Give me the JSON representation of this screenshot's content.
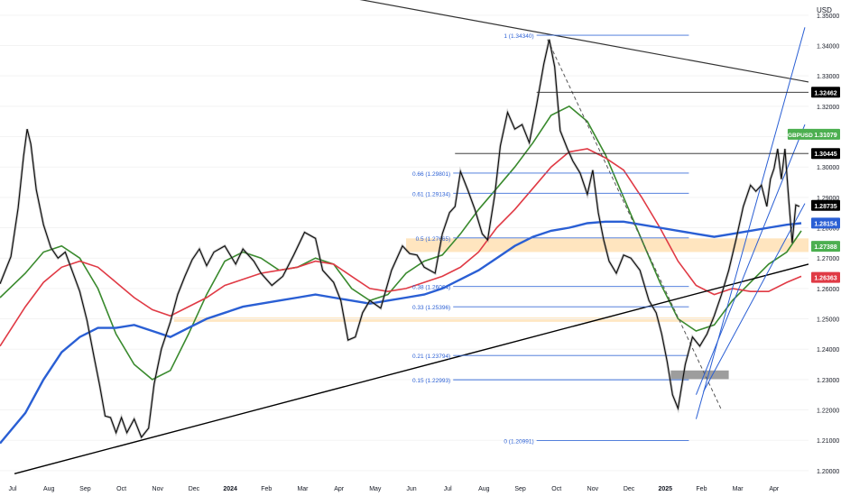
{
  "chart_data": {
    "type": "line",
    "symbol": "GBPUSD",
    "currency": "USD",
    "y_ticks": [
      "1.35000",
      "1.34000",
      "1.33000",
      "1.32000",
      "1.31000",
      "1.30000",
      "1.29000",
      "1.28000",
      "1.27000",
      "1.26000",
      "1.25000",
      "1.24000",
      "1.23000",
      "1.22000",
      "1.21000",
      "1.20000"
    ],
    "ylim": [
      1.197,
      1.355
    ],
    "x_ticks": [
      {
        "label": "Jul",
        "m": 0.0
      },
      {
        "label": "Aug",
        "m": 1.0
      },
      {
        "label": "Sep",
        "m": 2.0
      },
      {
        "label": "Oct",
        "m": 3.0
      },
      {
        "label": "Nov",
        "m": 4.0
      },
      {
        "label": "Dec",
        "m": 5.0
      },
      {
        "label": "2024",
        "m": 6.0
      },
      {
        "label": "Feb",
        "m": 7.0
      },
      {
        "label": "Mar",
        "m": 8.0
      },
      {
        "label": "Apr",
        "m": 9.0
      },
      {
        "label": "May",
        "m": 10.0
      },
      {
        "label": "Jun",
        "m": 11.0
      },
      {
        "label": "Jul",
        "m": 12.0
      },
      {
        "label": "Aug",
        "m": 13.0
      },
      {
        "label": "Sep",
        "m": 14.0
      },
      {
        "label": "Oct",
        "m": 15.0
      },
      {
        "label": "Nov",
        "m": 16.0
      },
      {
        "label": "Dec",
        "m": 17.0
      },
      {
        "label": "2025",
        "m": 18.0
      },
      {
        "label": "Feb",
        "m": 19.0
      },
      {
        "label": "Mar",
        "m": 20.0
      },
      {
        "label": "Apr",
        "m": 21.0
      }
    ],
    "xlim": [
      -0.2,
      22.1
    ],
    "price": [
      [
        -0.2,
        1.2615
      ],
      [
        0.1,
        1.2705
      ],
      [
        0.3,
        1.2865
      ],
      [
        0.45,
        1.3035
      ],
      [
        0.55,
        1.3125
      ],
      [
        0.65,
        1.3075
      ],
      [
        0.8,
        1.2925
      ],
      [
        1.0,
        1.281
      ],
      [
        1.2,
        1.2735
      ],
      [
        1.4,
        1.27
      ],
      [
        1.6,
        1.272
      ],
      [
        1.8,
        1.2655
      ],
      [
        2.0,
        1.259
      ],
      [
        2.2,
        1.2495
      ],
      [
        2.4,
        1.237
      ],
      [
        2.55,
        1.228
      ],
      [
        2.7,
        1.218
      ],
      [
        2.85,
        1.2175
      ],
      [
        3.0,
        1.2125
      ],
      [
        3.15,
        1.2175
      ],
      [
        3.3,
        1.2125
      ],
      [
        3.5,
        1.217
      ],
      [
        3.7,
        1.211
      ],
      [
        3.9,
        1.214
      ],
      [
        4.05,
        1.2285
      ],
      [
        4.25,
        1.24
      ],
      [
        4.5,
        1.249
      ],
      [
        4.7,
        1.258
      ],
      [
        4.9,
        1.264
      ],
      [
        5.1,
        1.2695
      ],
      [
        5.3,
        1.273
      ],
      [
        5.5,
        1.2675
      ],
      [
        5.7,
        1.272
      ],
      [
        6.0,
        1.274
      ],
      [
        6.3,
        1.268
      ],
      [
        6.5,
        1.273
      ],
      [
        6.8,
        1.269
      ],
      [
        7.0,
        1.265
      ],
      [
        7.3,
        1.261
      ],
      [
        7.6,
        1.264
      ],
      [
        7.9,
        1.271
      ],
      [
        8.2,
        1.2785
      ],
      [
        8.5,
        1.2765
      ],
      [
        8.7,
        1.266
      ],
      [
        9.0,
        1.262
      ],
      [
        9.2,
        1.256
      ],
      [
        9.4,
        1.243
      ],
      [
        9.6,
        1.244
      ],
      [
        9.8,
        1.252
      ],
      [
        10.0,
        1.256
      ],
      [
        10.3,
        1.2535
      ],
      [
        10.6,
        1.266
      ],
      [
        10.9,
        1.274
      ],
      [
        11.1,
        1.2715
      ],
      [
        11.3,
        1.271
      ],
      [
        11.5,
        1.267
      ],
      [
        11.8,
        1.265
      ],
      [
        12.0,
        1.278
      ],
      [
        12.2,
        1.285
      ],
      [
        12.35,
        1.287
      ],
      [
        12.5,
        1.2985
      ],
      [
        12.7,
        1.2925
      ],
      [
        12.9,
        1.286
      ],
      [
        13.1,
        1.278
      ],
      [
        13.25,
        1.276
      ],
      [
        13.45,
        1.291
      ],
      [
        13.6,
        1.307
      ],
      [
        13.8,
        1.318
      ],
      [
        14.0,
        1.3125
      ],
      [
        14.2,
        1.314
      ],
      [
        14.4,
        1.308
      ],
      [
        14.6,
        1.3205
      ],
      [
        14.8,
        1.334
      ],
      [
        14.95,
        1.342
      ],
      [
        15.1,
        1.333
      ],
      [
        15.25,
        1.312
      ],
      [
        15.45,
        1.306
      ],
      [
        15.6,
        1.302
      ],
      [
        15.8,
        1.298
      ],
      [
        16.0,
        1.291
      ],
      [
        16.15,
        1.299
      ],
      [
        16.3,
        1.285
      ],
      [
        16.45,
        1.276
      ],
      [
        16.6,
        1.269
      ],
      [
        16.8,
        1.265
      ],
      [
        17.0,
        1.271
      ],
      [
        17.2,
        1.27
      ],
      [
        17.45,
        1.266
      ],
      [
        17.7,
        1.256
      ],
      [
        17.9,
        1.252
      ],
      [
        18.05,
        1.245
      ],
      [
        18.2,
        1.236
      ],
      [
        18.35,
        1.225
      ],
      [
        18.5,
        1.2205
      ],
      [
        18.7,
        1.235
      ],
      [
        18.9,
        1.244
      ],
      [
        19.1,
        1.241
      ],
      [
        19.3,
        1.245
      ],
      [
        19.5,
        1.251
      ],
      [
        19.7,
        1.258
      ],
      [
        19.9,
        1.266
      ],
      [
        20.1,
        1.276
      ],
      [
        20.3,
        1.287
      ],
      [
        20.5,
        1.294
      ],
      [
        20.65,
        1.292
      ],
      [
        20.8,
        1.294
      ],
      [
        20.95,
        1.287
      ],
      [
        21.05,
        1.296
      ],
      [
        21.15,
        1.2995
      ],
      [
        21.25,
        1.306
      ],
      [
        21.35,
        1.296
      ],
      [
        21.45,
        1.306
      ],
      [
        21.55,
        1.29
      ],
      [
        21.65,
        1.275
      ],
      [
        21.75,
        1.2875
      ],
      [
        21.85,
        1.287
      ]
    ],
    "moving_averages": [
      {
        "color": "#3a8a2e",
        "points": [
          [
            -0.2,
            1.257
          ],
          [
            0.5,
            1.265
          ],
          [
            1.0,
            1.272
          ],
          [
            1.5,
            1.274
          ],
          [
            2.0,
            1.27
          ],
          [
            2.5,
            1.26
          ],
          [
            3.0,
            1.245
          ],
          [
            3.5,
            1.235
          ],
          [
            4.0,
            1.23
          ],
          [
            4.5,
            1.233
          ],
          [
            5.0,
            1.245
          ],
          [
            5.5,
            1.258
          ],
          [
            6.0,
            1.269
          ],
          [
            6.5,
            1.272
          ],
          [
            7.0,
            1.27
          ],
          [
            7.5,
            1.266
          ],
          [
            8.0,
            1.267
          ],
          [
            8.5,
            1.27
          ],
          [
            9.0,
            1.268
          ],
          [
            9.5,
            1.26
          ],
          [
            10.0,
            1.256
          ],
          [
            10.5,
            1.258
          ],
          [
            11.0,
            1.265
          ],
          [
            11.5,
            1.269
          ],
          [
            12.0,
            1.271
          ],
          [
            12.5,
            1.278
          ],
          [
            13.0,
            1.286
          ],
          [
            13.5,
            1.293
          ],
          [
            14.0,
            1.3
          ],
          [
            14.5,
            1.308
          ],
          [
            15.0,
            1.317
          ],
          [
            15.5,
            1.32
          ],
          [
            16.0,
            1.315
          ],
          [
            16.5,
            1.304
          ],
          [
            17.0,
            1.29
          ],
          [
            17.5,
            1.276
          ],
          [
            18.0,
            1.262
          ],
          [
            18.5,
            1.25
          ],
          [
            19.0,
            1.246
          ],
          [
            19.5,
            1.248
          ],
          [
            20.0,
            1.256
          ],
          [
            20.5,
            1.262
          ],
          [
            21.0,
            1.268
          ],
          [
            21.5,
            1.272
          ],
          [
            21.9,
            1.279
          ]
        ]
      },
      {
        "color": "#e03a45",
        "points": [
          [
            -0.2,
            1.241
          ],
          [
            0.5,
            1.254
          ],
          [
            1.0,
            1.262
          ],
          [
            1.5,
            1.267
          ],
          [
            2.0,
            1.269
          ],
          [
            2.5,
            1.267
          ],
          [
            3.0,
            1.262
          ],
          [
            3.5,
            1.257
          ],
          [
            4.0,
            1.253
          ],
          [
            4.5,
            1.251
          ],
          [
            5.0,
            1.254
          ],
          [
            5.5,
            1.257
          ],
          [
            6.0,
            1.261
          ],
          [
            6.5,
            1.263
          ],
          [
            7.0,
            1.265
          ],
          [
            7.5,
            1.266
          ],
          [
            8.0,
            1.267
          ],
          [
            8.5,
            1.269
          ],
          [
            9.0,
            1.268
          ],
          [
            9.5,
            1.264
          ],
          [
            10.0,
            1.26
          ],
          [
            10.5,
            1.259
          ],
          [
            11.0,
            1.26
          ],
          [
            11.5,
            1.262
          ],
          [
            12.0,
            1.264
          ],
          [
            12.5,
            1.267
          ],
          [
            13.0,
            1.272
          ],
          [
            13.5,
            1.28
          ],
          [
            14.0,
            1.286
          ],
          [
            14.5,
            1.293
          ],
          [
            15.0,
            1.3
          ],
          [
            15.5,
            1.305
          ],
          [
            16.0,
            1.306
          ],
          [
            16.5,
            1.303
          ],
          [
            17.0,
            1.299
          ],
          [
            17.5,
            1.29
          ],
          [
            18.0,
            1.28
          ],
          [
            18.5,
            1.269
          ],
          [
            19.0,
            1.261
          ],
          [
            19.5,
            1.258
          ],
          [
            20.0,
            1.26
          ],
          [
            20.5,
            1.259
          ],
          [
            21.0,
            1.259
          ],
          [
            21.5,
            1.262
          ],
          [
            21.9,
            1.264
          ]
        ]
      },
      {
        "color": "#2a5fd4",
        "points": [
          [
            -0.2,
            1.209
          ],
          [
            0.5,
            1.219
          ],
          [
            1.0,
            1.23
          ],
          [
            1.5,
            1.239
          ],
          [
            2.0,
            1.244
          ],
          [
            2.5,
            1.247
          ],
          [
            3.0,
            1.247
          ],
          [
            3.5,
            1.248
          ],
          [
            4.0,
            1.246
          ],
          [
            4.5,
            1.244
          ],
          [
            5.0,
            1.247
          ],
          [
            5.5,
            1.25
          ],
          [
            6.0,
            1.252
          ],
          [
            6.5,
            1.254
          ],
          [
            7.0,
            1.255
          ],
          [
            7.5,
            1.256
          ],
          [
            8.0,
            1.257
          ],
          [
            8.5,
            1.258
          ],
          [
            9.0,
            1.257
          ],
          [
            9.5,
            1.256
          ],
          [
            10.0,
            1.255
          ],
          [
            10.5,
            1.256
          ],
          [
            11.0,
            1.257
          ],
          [
            11.5,
            1.258
          ],
          [
            12.0,
            1.26
          ],
          [
            12.5,
            1.263
          ],
          [
            13.0,
            1.266
          ],
          [
            13.5,
            1.27
          ],
          [
            14.0,
            1.274
          ],
          [
            14.5,
            1.277
          ],
          [
            15.0,
            1.279
          ],
          [
            15.5,
            1.28
          ],
          [
            16.0,
            1.2815
          ],
          [
            16.5,
            1.282
          ],
          [
            17.0,
            1.282
          ],
          [
            17.5,
            1.281
          ],
          [
            18.0,
            1.28
          ],
          [
            18.5,
            1.279
          ],
          [
            19.0,
            1.278
          ],
          [
            19.5,
            1.277
          ],
          [
            20.0,
            1.278
          ],
          [
            20.5,
            1.279
          ],
          [
            21.0,
            1.28
          ],
          [
            21.5,
            1.281
          ],
          [
            21.9,
            1.2815
          ]
        ]
      }
    ],
    "fib_levels": [
      {
        "label": "1 (1.34340)",
        "value": 1.3434,
        "x1": 14.6,
        "x2": 18.8
      },
      {
        "label": "0.66 (1.29801)",
        "value": 1.29801,
        "x1": 12.3,
        "x2": 18.8
      },
      {
        "label": "0.61 (1.29134)",
        "value": 1.29134,
        "x1": 12.3,
        "x2": 18.8
      },
      {
        "label": "0.5 (1.27665)",
        "value": 1.27665,
        "x1": 12.3,
        "x2": 18.8
      },
      {
        "label": "0.38 (1.26064)",
        "value": 1.26064,
        "x1": 12.3,
        "x2": 18.8
      },
      {
        "label": "0.33 (1.25396)",
        "value": 1.25396,
        "x1": 12.3,
        "x2": 18.8
      },
      {
        "label": "0.21 (1.23794)",
        "value": 1.23794,
        "x1": 12.3,
        "x2": 18.8
      },
      {
        "label": "0.15 (1.22993)",
        "value": 1.22993,
        "x1": 12.3,
        "x2": 18.8
      },
      {
        "label": "0 (1.20991)",
        "value": 1.20991,
        "x1": 14.6,
        "x2": 18.8
      }
    ],
    "price_labels": [
      {
        "text": "1.32462",
        "value": 1.32462,
        "bg": "#000000",
        "fg": "#ffffff"
      },
      {
        "text": "1.31079",
        "value": 1.31079,
        "bg": "#4caf50",
        "fg": "#ffffff"
      },
      {
        "text": "1.30445",
        "value": 1.30445,
        "bg": "#000000",
        "fg": "#ffffff"
      },
      {
        "text": "1.28735",
        "value": 1.28735,
        "bg": "#000000",
        "fg": "#ffffff"
      },
      {
        "text": "1.28154",
        "value": 1.28154,
        "bg": "#2a5fd4",
        "fg": "#ffffff"
      },
      {
        "text": "1.27388",
        "value": 1.27388,
        "bg": "#4caf50",
        "fg": "#ffffff"
      },
      {
        "text": "1.26363",
        "value": 1.26363,
        "bg": "#e03a45",
        "fg": "#ffffff"
      }
    ],
    "horizontal_lines": [
      {
        "value": 1.32462,
        "x1": 14.6,
        "x2": 22.1
      },
      {
        "value": 1.30445,
        "x1": 12.35,
        "x2": 22.1
      }
    ],
    "trendlines": [
      {
        "x1": 5.7,
        "y1": 1.364,
        "x2": 22.1,
        "y2": 1.328,
        "color": "#333333",
        "width": 1.2
      },
      {
        "x1": 0.2,
        "y1": 1.199,
        "x2": 22.1,
        "y2": 1.268,
        "color": "#000000",
        "width": 1.4
      }
    ],
    "dashed_lines": [
      {
        "x1": 14.9,
        "y1": 1.342,
        "x2": 19.7,
        "y2": 1.22
      }
    ],
    "channel_lines": [
      {
        "x1": 19.0,
        "y1": 1.217,
        "x2": 22.0,
        "y2": 1.346
      },
      {
        "x1": 19.0,
        "y1": 1.225,
        "x2": 22.0,
        "y2": 1.314
      },
      {
        "x1": 19.2,
        "y1": 1.226,
        "x2": 22.0,
        "y2": 1.288
      }
    ],
    "zones": [
      {
        "y1": 1.272,
        "y2": 1.2765,
        "x1": 11.0,
        "x2": 22.1,
        "color": "#ffd08a",
        "opacity": 0.55
      },
      {
        "y1": 1.249,
        "y2": 1.2505,
        "x1": 4.6,
        "x2": 19.5,
        "color": "#ffd08a",
        "opacity": 0.5
      },
      {
        "y1": 1.23,
        "y2": 1.233,
        "x1": 18.3,
        "x2": 19.9,
        "color": "#8c8c8c",
        "opacity": 0.85
      }
    ],
    "ticker_badge": {
      "text": "GBPUSD",
      "value": 1.31079,
      "x": 21.55
    }
  }
}
